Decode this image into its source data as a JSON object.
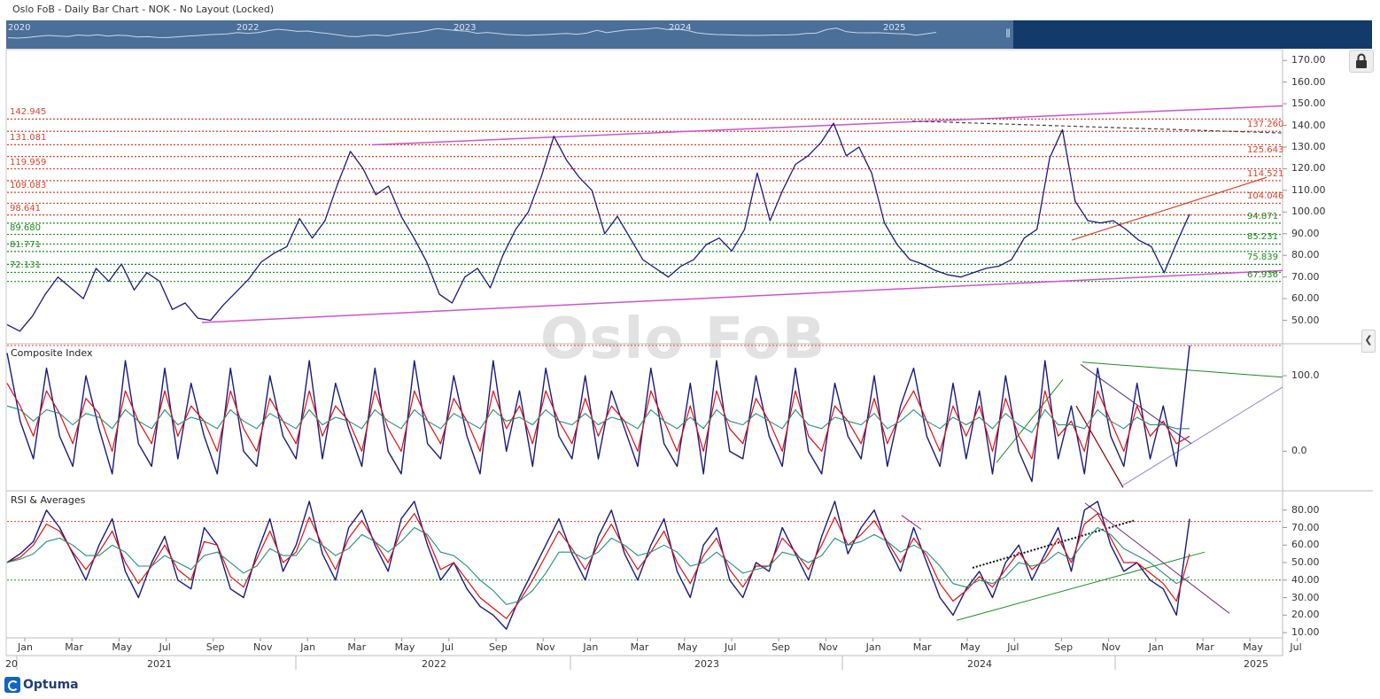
{
  "window": {
    "title": "Oslo FoB - Daily Bar Chart - NOK - No Layout (Locked)"
  },
  "navigator": {
    "years": [
      "2020",
      "2022",
      "2023",
      "2024",
      "2025"
    ],
    "grip": "|||"
  },
  "watermark": "Oslo FoB",
  "logo": {
    "text": "Optuma"
  },
  "colors": {
    "price": "#1a1a7e",
    "fib_red": "#e0402a",
    "fib_green": "#1f8a1f",
    "channel": "#cc55cc",
    "navigator": "#4a6f98",
    "navigator_dark": "#123a6b",
    "osc_fast": "#e01010",
    "osc_slow": "#1f8f80"
  },
  "chart_data": [
    {
      "type": "line",
      "pane": "price",
      "ylim": [
        40,
        175
      ],
      "yticks": [
        "170.00",
        "160.00",
        "150.00",
        "140.00",
        "130.00",
        "120.00",
        "110.00",
        "100.00",
        "90.00",
        "80.00",
        "70.00",
        "60.00",
        "50.00"
      ],
      "fib_levels_left": [
        {
          "label": "142.945",
          "value": 142.945,
          "color": "red"
        },
        {
          "label": "131.081",
          "value": 131.081,
          "color": "red"
        },
        {
          "label": "119.959",
          "value": 119.959,
          "color": "red"
        },
        {
          "label": "109.083",
          "value": 109.083,
          "color": "red"
        },
        {
          "label": "98.641",
          "value": 98.641,
          "color": "red"
        },
        {
          "label": "89.680",
          "value": 89.68,
          "color": "green"
        },
        {
          "label": "81.771",
          "value": 81.771,
          "color": "green"
        },
        {
          "label": "72.131",
          "value": 72.131,
          "color": "green"
        }
      ],
      "fib_levels_right": [
        {
          "label": "137.260",
          "value": 137.26,
          "color": "red"
        },
        {
          "label": "125.643",
          "value": 125.643,
          "color": "red"
        },
        {
          "label": "114.521",
          "value": 114.521,
          "color": "red"
        },
        {
          "label": "104.046",
          "value": 104.046,
          "color": "red"
        },
        {
          "label": "94.871",
          "value": 94.871,
          "color": "green"
        },
        {
          "label": "85.231",
          "value": 85.231,
          "color": "green"
        },
        {
          "label": "75.839",
          "value": 75.839,
          "color": "green"
        },
        {
          "label": "67.936",
          "value": 67.936,
          "color": "green"
        }
      ],
      "series": [
        {
          "values": [
            48,
            45,
            52,
            62,
            70,
            65,
            60,
            74,
            68,
            76,
            64,
            72,
            68,
            55,
            58,
            51,
            50,
            57,
            63,
            69,
            77,
            81,
            84,
            97,
            88,
            96,
            113,
            128,
            120,
            108,
            112,
            98,
            88,
            77,
            62,
            58,
            70,
            74,
            65,
            80,
            92,
            100,
            116,
            135,
            124,
            116,
            110,
            90,
            98,
            88,
            78,
            74,
            70,
            75,
            78,
            85,
            88,
            82,
            92,
            118,
            96,
            110,
            122,
            126,
            132,
            141,
            126,
            130,
            118,
            95,
            85,
            78,
            76,
            73,
            71,
            70,
            72,
            74,
            75,
            78,
            88,
            92,
            125,
            138,
            105,
            96,
            95,
            96,
            92,
            87,
            84,
            72,
            86,
            99
          ]
        }
      ]
    },
    {
      "type": "line",
      "pane": "composite",
      "title": "Composite Index",
      "ylim": [
        -50,
        140
      ],
      "yticks": [
        "100.0",
        "0.0"
      ],
      "series": [
        {
          "values": [
            130,
            40,
            -10,
            110,
            20,
            -20,
            100,
            30,
            -30,
            120,
            10,
            -20,
            110,
            -10,
            90,
            20,
            -30,
            110,
            0,
            -20,
            100,
            20,
            -10,
            120,
            -10,
            90,
            30,
            -20,
            110,
            0,
            -30,
            120,
            10,
            -10,
            100,
            20,
            -30,
            120,
            0,
            80,
            -20,
            110,
            20,
            -10,
            100,
            -10,
            80,
            30,
            -20,
            110,
            10,
            -20,
            90,
            -30,
            120,
            0,
            -10,
            100,
            20,
            -20,
            110,
            0,
            -30,
            90,
            20,
            -10,
            100,
            -20,
            60,
            110,
            20,
            -20,
            90,
            -10,
            80,
            -30,
            100,
            0,
            -40,
            120,
            -10,
            60,
            -30,
            110,
            20,
            -20,
            90,
            -10,
            60,
            -20,
            140
          ]
        },
        {
          "values": [
            90,
            60,
            20,
            80,
            50,
            10,
            70,
            50,
            0,
            80,
            40,
            10,
            80,
            20,
            60,
            40,
            0,
            80,
            30,
            0,
            70,
            40,
            10,
            80,
            20,
            60,
            40,
            0,
            80,
            30,
            0,
            80,
            40,
            10,
            70,
            40,
            0,
            80,
            30,
            60,
            10,
            80,
            40,
            10,
            70,
            20,
            60,
            40,
            0,
            80,
            40,
            0,
            60,
            0,
            80,
            30,
            10,
            70,
            40,
            0,
            80,
            20,
            0,
            60,
            40,
            10,
            70,
            10,
            50,
            80,
            40,
            0,
            60,
            20,
            60,
            0,
            70,
            20,
            -10,
            80,
            20,
            40,
            0,
            80,
            40,
            0,
            60,
            20,
            40,
            10,
            20
          ]
        },
        {
          "values": [
            60,
            55,
            40,
            55,
            50,
            35,
            50,
            45,
            30,
            55,
            40,
            30,
            55,
            35,
            45,
            40,
            30,
            55,
            40,
            30,
            50,
            40,
            30,
            55,
            35,
            45,
            40,
            30,
            55,
            40,
            30,
            55,
            40,
            30,
            50,
            40,
            30,
            55,
            40,
            45,
            35,
            55,
            40,
            35,
            50,
            35,
            45,
            40,
            30,
            55,
            40,
            30,
            45,
            30,
            55,
            40,
            35,
            50,
            40,
            30,
            55,
            35,
            30,
            45,
            40,
            35,
            50,
            30,
            40,
            55,
            40,
            30,
            45,
            35,
            45,
            30,
            50,
            35,
            25,
            55,
            35,
            35,
            30,
            55,
            40,
            30,
            45,
            35,
            35,
            30,
            30
          ]
        }
      ]
    },
    {
      "type": "line",
      "pane": "rsi",
      "title": "RSI & Averages",
      "ylim": [
        8,
        90
      ],
      "yticks": [
        "80.00",
        "70.00",
        "60.00",
        "50.00",
        "40.00",
        "30.00",
        "20.00",
        "10.00"
      ],
      "series": [
        {
          "values": [
            50,
            55,
            62,
            80,
            70,
            55,
            40,
            60,
            75,
            45,
            30,
            50,
            65,
            40,
            35,
            70,
            60,
            35,
            30,
            55,
            75,
            45,
            60,
            85,
            55,
            40,
            70,
            80,
            60,
            45,
            75,
            85,
            60,
            40,
            50,
            35,
            25,
            20,
            12,
            30,
            45,
            60,
            75,
            55,
            40,
            65,
            80,
            55,
            40,
            60,
            75,
            45,
            30,
            60,
            70,
            40,
            30,
            50,
            45,
            70,
            55,
            40,
            65,
            85,
            55,
            70,
            80,
            60,
            45,
            70,
            50,
            30,
            20,
            35,
            45,
            30,
            50,
            60,
            40,
            55,
            70,
            45,
            80,
            85,
            60,
            45,
            50,
            40,
            35,
            20,
            75
          ]
        },
        {
          "values": [
            50,
            53,
            60,
            72,
            68,
            56,
            46,
            56,
            68,
            50,
            38,
            48,
            60,
            46,
            40,
            62,
            60,
            42,
            36,
            52,
            68,
            50,
            56,
            76,
            60,
            46,
            64,
            74,
            62,
            50,
            68,
            78,
            64,
            46,
            50,
            40,
            30,
            24,
            18,
            28,
            40,
            54,
            68,
            58,
            46,
            60,
            72,
            58,
            46,
            56,
            68,
            50,
            38,
            54,
            64,
            46,
            36,
            48,
            48,
            64,
            56,
            46,
            60,
            76,
            60,
            66,
            74,
            62,
            50,
            64,
            54,
            38,
            28,
            34,
            42,
            36,
            46,
            56,
            46,
            52,
            64,
            50,
            72,
            78,
            64,
            50,
            50,
            44,
            38,
            28,
            55
          ]
        },
        {
          "values": [
            50,
            52,
            55,
            62,
            64,
            60,
            54,
            54,
            60,
            56,
            48,
            48,
            54,
            50,
            46,
            54,
            56,
            50,
            44,
            48,
            58,
            54,
            54,
            64,
            60,
            54,
            58,
            66,
            62,
            56,
            62,
            70,
            66,
            56,
            54,
            48,
            40,
            34,
            26,
            28,
            34,
            44,
            56,
            56,
            52,
            56,
            64,
            60,
            54,
            56,
            60,
            56,
            48,
            50,
            56,
            50,
            44,
            46,
            48,
            56,
            54,
            50,
            54,
            64,
            60,
            62,
            66,
            62,
            56,
            60,
            56,
            48,
            38,
            36,
            40,
            38,
            42,
            50,
            48,
            50,
            56,
            52,
            62,
            70,
            66,
            58,
            54,
            50,
            44,
            38,
            42
          ]
        }
      ]
    }
  ],
  "x_axis": {
    "months": [
      "Jan",
      "Mar",
      "May",
      "Jul",
      "Sep",
      "Nov",
      "Jan",
      "Mar",
      "May",
      "Jul",
      "Sep",
      "Nov",
      "Jan",
      "Mar",
      "May",
      "Jul",
      "Sep",
      "Nov",
      "Jan",
      "Mar",
      "May",
      "Jul",
      "Sep",
      "Nov",
      "Jan",
      "Mar",
      "May",
      "Jul"
    ],
    "years": [
      "20",
      "2021",
      "2022",
      "2023",
      "2024",
      "2025"
    ]
  }
}
